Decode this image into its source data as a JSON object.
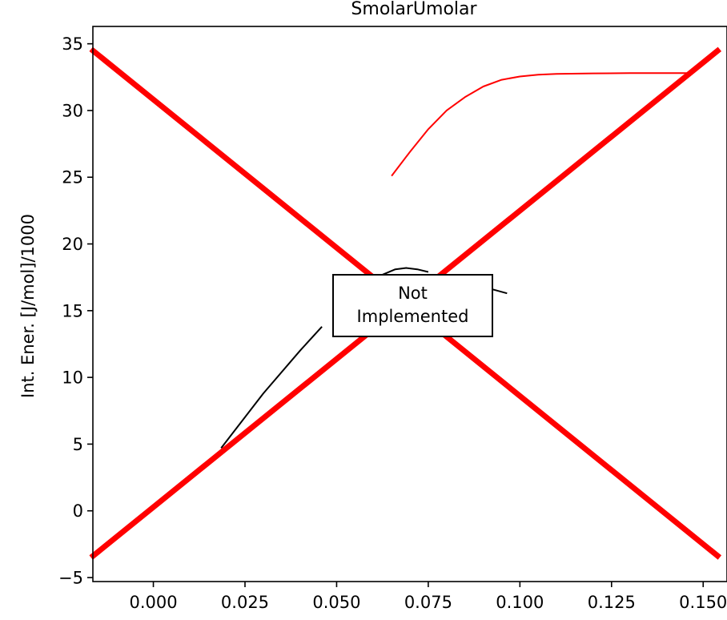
{
  "chart_data": {
    "type": "line",
    "title": "SmolarUmolar",
    "xlabel": "",
    "ylabel": "Int. Ener. [J/mol]/1000",
    "xlim": [
      -0.0165,
      0.1565
    ],
    "ylim": [
      -5.3,
      36.3
    ],
    "xticks": [
      0.0,
      0.025,
      0.05,
      0.075,
      0.1,
      0.125,
      0.15
    ],
    "xtick_labels": [
      "0.000",
      "0.025",
      "0.050",
      "0.075",
      "0.100",
      "0.125",
      "0.150"
    ],
    "yticks": [
      -5,
      0,
      5,
      10,
      15,
      20,
      25,
      30,
      35
    ],
    "ytick_labels": [
      "−5",
      "0",
      "5",
      "10",
      "15",
      "20",
      "25",
      "30",
      "35"
    ],
    "grid": false,
    "series": [
      {
        "color": "#ff0000",
        "x": [
          0.065,
          0.07,
          0.075,
          0.08,
          0.085,
          0.09,
          0.095,
          0.1,
          0.105,
          0.11,
          0.12,
          0.13,
          0.14,
          0.146
        ],
        "y": [
          25.1,
          26.9,
          28.6,
          30.0,
          31.0,
          31.8,
          32.3,
          32.55,
          32.68,
          32.74,
          32.78,
          32.8,
          32.8,
          32.8
        ]
      },
      {
        "color": "#000000",
        "x": [
          0.0185,
          0.03,
          0.04,
          0.046
        ],
        "y": [
          4.7,
          8.8,
          12.0,
          13.8
        ]
      },
      {
        "color": "#000000",
        "x": [
          0.0625,
          0.066,
          0.069,
          0.072,
          0.075
        ],
        "y": [
          17.7,
          18.1,
          18.2,
          18.1,
          17.9
        ]
      },
      {
        "color": "#000000",
        "x": [
          0.0925,
          0.0965
        ],
        "y": [
          16.6,
          16.3
        ]
      }
    ],
    "annotations": [
      {
        "text": "Not\nImplemented",
        "line1": "Not",
        "line2": "Implemented"
      }
    ],
    "overlay": {
      "description": "red cross",
      "color": "#ff0000",
      "lines": [
        {
          "x": [
            -0.017,
            0.1545
          ],
          "y": [
            34.6,
            -3.5
          ]
        },
        {
          "x": [
            -0.017,
            0.1545
          ],
          "y": [
            -3.5,
            34.6
          ]
        }
      ]
    }
  }
}
